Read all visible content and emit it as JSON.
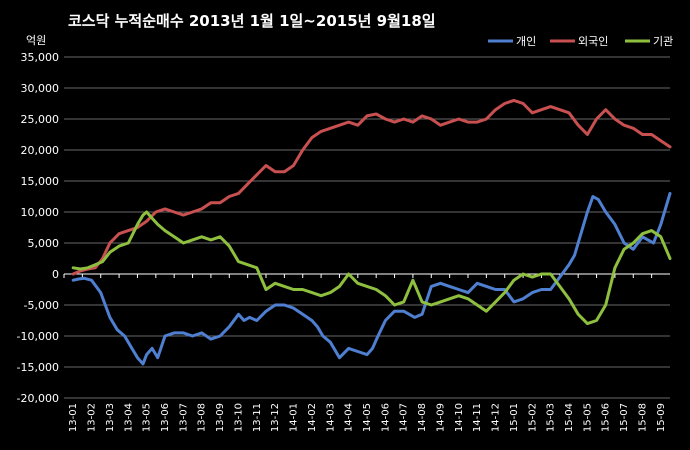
{
  "chart_data": {
    "type": "line",
    "title": "코스닥 누적순매수 2013년 1월 1일~2015년 9월18일",
    "unit_label": "억원",
    "xlabel": "",
    "ylabel": "",
    "ylim": [
      -20000,
      35000
    ],
    "yticks": [
      "35,000",
      "30,000",
      "25,000",
      "20,000",
      "15,000",
      "10,000",
      "5,000",
      "0",
      "-5,000",
      "-10,000",
      "-15,000",
      "-20,000"
    ],
    "ytick_values": [
      35000,
      30000,
      25000,
      20000,
      15000,
      10000,
      5000,
      0,
      -5000,
      -10000,
      -15000,
      -20000
    ],
    "categories": [
      "13-01",
      "13-02",
      "13-03",
      "13-04",
      "13-05",
      "13-06",
      "13-07",
      "13-08",
      "13-09",
      "13-10",
      "13-11",
      "13-12",
      "14-01",
      "14-02",
      "14-03",
      "14-04",
      "14-05",
      "14-06",
      "14-07",
      "14-08",
      "14-09",
      "14-10",
      "14-11",
      "14-12",
      "15-01",
      "15-02",
      "15-03",
      "15-04",
      "15-05",
      "15-06",
      "15-07",
      "15-08",
      "15-09"
    ],
    "grid": true,
    "legend_position": "top-right",
    "colors": {
      "background": "#000000",
      "grid": "#8a8a8a",
      "axis": "#ffffff"
    },
    "series": [
      {
        "name": "개인",
        "color": "#4f7fd0",
        "x": [
          0,
          0.3,
          0.6,
          1,
          1.5,
          2,
          2.4,
          2.8,
          3.2,
          3.5,
          3.8,
          4,
          4.3,
          4.6,
          5,
          5.5,
          6,
          6.5,
          7,
          7.5,
          8,
          8.5,
          9,
          9.3,
          9.6,
          10,
          10.5,
          11,
          11.5,
          12,
          12.5,
          13,
          13.3,
          13.6,
          14,
          14.5,
          15,
          15.5,
          16,
          16.3,
          16.6,
          17,
          17.5,
          18,
          18.3,
          18.6,
          19,
          19.5,
          20,
          20.5,
          21,
          21.5,
          22,
          22.5,
          23,
          23.5,
          24,
          24.5,
          25,
          25.5,
          26,
          26.5,
          27,
          27.3,
          27.6,
          28,
          28.3,
          28.6,
          29,
          29.5,
          30,
          30.5,
          31,
          31.3,
          31.6,
          32,
          32.3,
          32.5
        ],
        "values": [
          -1000,
          -800,
          -700,
          -1000,
          -3000,
          -7000,
          -9000,
          -10000,
          -12000,
          -13500,
          -14500,
          -13000,
          -12000,
          -13500,
          -10000,
          -9500,
          -9500,
          -10000,
          -9500,
          -10500,
          -10000,
          -8500,
          -6500,
          -7500,
          -7000,
          -7500,
          -6000,
          -5000,
          -5000,
          -5500,
          -6500,
          -7500,
          -8500,
          -10000,
          -11000,
          -13500,
          -12000,
          -12500,
          -13000,
          -12000,
          -10000,
          -7500,
          -6000,
          -6000,
          -6500,
          -7000,
          -6500,
          -2000,
          -1500,
          -2000,
          -2500,
          -3000,
          -1500,
          -2000,
          -2500,
          -2500,
          -4500,
          -4000,
          -3000,
          -2500,
          -2500,
          -500,
          1500,
          3000,
          6000,
          10000,
          12500,
          12000,
          10000,
          8000,
          5000,
          4000,
          6000,
          5500,
          5000,
          8000,
          11000,
          13000
        ]
      },
      {
        "name": "외국인",
        "color": "#c85050",
        "x": [
          0,
          0.4,
          0.8,
          1.2,
          1.6,
          2,
          2.5,
          3,
          3.5,
          4,
          4.5,
          5,
          5.5,
          6,
          6.5,
          7,
          7.5,
          8,
          8.5,
          9,
          9.5,
          10,
          10.5,
          11,
          11.5,
          12,
          12.5,
          13,
          13.5,
          14,
          14.5,
          15,
          15.5,
          16,
          16.5,
          17,
          17.5,
          18,
          18.5,
          19,
          19.5,
          20,
          20.5,
          21,
          21.5,
          22,
          22.5,
          23,
          23.5,
          24,
          24.5,
          25,
          25.5,
          26,
          26.5,
          27,
          27.5,
          28,
          28.5,
          29,
          29.5,
          30,
          30.5,
          31,
          31.5,
          32,
          32.5
        ],
        "values": [
          0,
          500,
          800,
          1000,
          2500,
          5000,
          6500,
          7000,
          7500,
          8500,
          10000,
          10500,
          10000,
          9500,
          10000,
          10500,
          11500,
          11500,
          12500,
          13000,
          14500,
          16000,
          17500,
          16500,
          16500,
          17500,
          20000,
          22000,
          23000,
          23500,
          24000,
          24500,
          24000,
          25500,
          25800,
          25000,
          24500,
          25000,
          24500,
          25500,
          25000,
          24000,
          24500,
          25000,
          24500,
          24500,
          25000,
          26500,
          27500,
          28000,
          27500,
          26000,
          26500,
          27000,
          26500,
          26000,
          24000,
          22500,
          25000,
          26500,
          25000,
          24000,
          23500,
          22500,
          22500,
          21500,
          20500
        ]
      },
      {
        "name": "기관",
        "color": "#8fbf3f",
        "x": [
          0,
          0.4,
          0.8,
          1.2,
          1.6,
          2,
          2.5,
          3,
          3.5,
          3.8,
          4,
          4.3,
          4.6,
          5,
          5.5,
          6,
          6.5,
          7,
          7.5,
          8,
          8.5,
          9,
          9.5,
          10,
          10.5,
          11,
          11.5,
          12,
          12.5,
          13,
          13.5,
          14,
          14.5,
          15,
          15.5,
          16,
          16.5,
          17,
          17.5,
          18,
          18.5,
          19,
          19.5,
          20,
          20.5,
          21,
          21.5,
          22,
          22.5,
          23,
          23.5,
          24,
          24.5,
          25,
          25.5,
          26,
          26.5,
          27,
          27.5,
          28,
          28.5,
          29,
          29.5,
          30,
          30.5,
          31,
          31.5,
          32,
          32.5
        ],
        "values": [
          1000,
          800,
          1000,
          1500,
          2000,
          3500,
          4500,
          5000,
          8000,
          9500,
          10000,
          9000,
          8000,
          7000,
          6000,
          5000,
          5500,
          6000,
          5500,
          6000,
          4500,
          2000,
          1500,
          1000,
          -2500,
          -1500,
          -2000,
          -2500,
          -2500,
          -3000,
          -3500,
          -3000,
          -2000,
          0,
          -1500,
          -2000,
          -2500,
          -3500,
          -5000,
          -4500,
          -1000,
          -4500,
          -5000,
          -4500,
          -4000,
          -3500,
          -4000,
          -5000,
          -6000,
          -4500,
          -3000,
          -1000,
          0,
          -500,
          0,
          0,
          -2000,
          -4000,
          -6500,
          -8000,
          -7500,
          -5000,
          1000,
          4000,
          5000,
          6500,
          7000,
          6000,
          2500
        ]
      }
    ]
  }
}
